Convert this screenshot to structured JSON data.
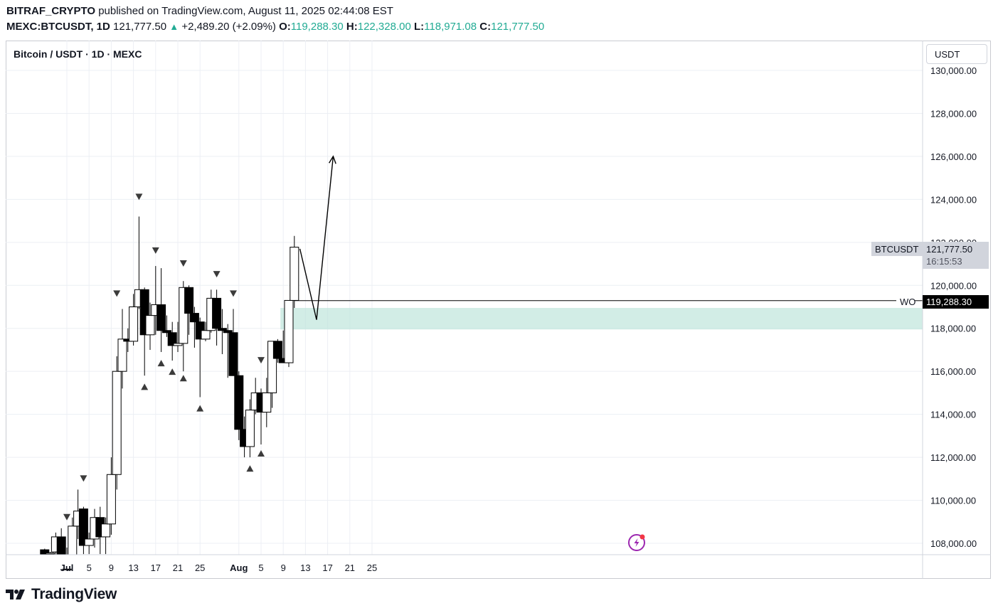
{
  "header": {
    "author": "BITRAF_CRYPTO",
    "published_text": "published on TradingView.com, August 11, 2025 02:44:08 EST",
    "symbol_line": "MEXC:BTCUSDT, 1D",
    "last_price": "121,777.50",
    "change": "+2,489.20 (+2.09%)",
    "ohlc": {
      "o_label": "O:",
      "o": "119,288.30",
      "h_label": "H:",
      "h": "122,328.00",
      "l_label": "L:",
      "l": "118,971.08",
      "c_label": "C:",
      "c": "121,777.50"
    }
  },
  "chart": {
    "title": "Bitcoin / USDT · 1D · MEXC",
    "currency": "USDT",
    "symbol_tag": "BTCUSDT",
    "price_tag": "121,777.50",
    "countdown": "16:15:53",
    "line_label": "WO",
    "line_price": "119,288.30"
  },
  "colors": {
    "candle_up_fill": "#ffffff",
    "candle_down_fill": "#000000",
    "zone": "#bfe6dc",
    "up_text": "#22ab94",
    "markers": "#3b3b3b",
    "grid": "#eceff4"
  },
  "footer": {
    "brand": "TradingView"
  },
  "chart_data": {
    "type": "candlestick",
    "y_ticks": [
      "130,000.00",
      "128,000.00",
      "126,000.00",
      "124,000.00",
      "122,000.00",
      "120,000.00",
      "118,000.00",
      "116,000.00",
      "114,000.00",
      "112,000.00",
      "110,000.00",
      "108,000.00"
    ],
    "x_ticks": [
      {
        "day": 1,
        "label": "Jul",
        "bold": true
      },
      {
        "day": 5,
        "label": "5"
      },
      {
        "day": 9,
        "label": "9"
      },
      {
        "day": 13,
        "label": "13"
      },
      {
        "day": 17,
        "label": "17"
      },
      {
        "day": 21,
        "label": "21"
      },
      {
        "day": 25,
        "label": "25"
      },
      {
        "day": 32,
        "label": "Aug",
        "bold": true
      },
      {
        "day": 36,
        "label": "5"
      },
      {
        "day": 40,
        "label": "9"
      },
      {
        "day": 44,
        "label": "13"
      },
      {
        "day": 48,
        "label": "17"
      },
      {
        "day": 52,
        "label": "21"
      },
      {
        "day": 56,
        "label": "25"
      }
    ],
    "ylim": [
      107500,
      130300
    ],
    "candles": [
      {
        "d": -3,
        "o": 107700,
        "h": 107750,
        "l": 107300,
        "c": 107450
      },
      {
        "d": -2,
        "o": 107500,
        "h": 107600,
        "l": 107200,
        "c": 107550
      },
      {
        "d": -1,
        "o": 107600,
        "h": 108500,
        "l": 107400,
        "c": 108300
      },
      {
        "d": 0,
        "o": 108300,
        "h": 108700,
        "l": 106800,
        "c": 107000
      },
      {
        "d": 1,
        "o": 106800,
        "h": 107800,
        "l": 105300,
        "c": 105600
      },
      {
        "d": 2,
        "o": 105600,
        "h": 109200,
        "l": 105100,
        "c": 108800
      },
      {
        "d": 3,
        "o": 108800,
        "h": 110500,
        "l": 108200,
        "c": 109500
      },
      {
        "d": 4,
        "o": 109600,
        "h": 109700,
        "l": 107500,
        "c": 107900
      },
      {
        "d": 5,
        "o": 107900,
        "h": 108500,
        "l": 107500,
        "c": 108200
      },
      {
        "d": 6,
        "o": 108200,
        "h": 109600,
        "l": 107800,
        "c": 109200
      },
      {
        "d": 7,
        "o": 109200,
        "h": 109700,
        "l": 107500,
        "c": 108300
      },
      {
        "d": 8,
        "o": 108300,
        "h": 109200,
        "l": 107500,
        "c": 108900
      },
      {
        "d": 9,
        "o": 108900,
        "h": 112000,
        "l": 108400,
        "c": 111200
      },
      {
        "d": 10,
        "o": 111200,
        "h": 116700,
        "l": 110500,
        "c": 116000
      },
      {
        "d": 11,
        "o": 116000,
        "h": 118900,
        "l": 115200,
        "c": 117500
      },
      {
        "d": 12,
        "o": 117500,
        "h": 118000,
        "l": 116900,
        "c": 117400
      },
      {
        "d": 13,
        "o": 117400,
        "h": 119600,
        "l": 117200,
        "c": 119000
      },
      {
        "d": 14,
        "o": 119000,
        "h": 123200,
        "l": 118900,
        "c": 119800
      },
      {
        "d": 15,
        "o": 119800,
        "h": 119900,
        "l": 115800,
        "c": 117700
      },
      {
        "d": 16,
        "o": 117700,
        "h": 119200,
        "l": 117000,
        "c": 118600
      },
      {
        "d": 17,
        "o": 118600,
        "h": 120900,
        "l": 117700,
        "c": 119100
      },
      {
        "d": 18,
        "o": 119100,
        "h": 120800,
        "l": 116900,
        "c": 117900
      },
      {
        "d": 19,
        "o": 117900,
        "h": 118600,
        "l": 117600,
        "c": 117800
      },
      {
        "d": 20,
        "o": 117800,
        "h": 118300,
        "l": 116500,
        "c": 117200
      },
      {
        "d": 21,
        "o": 117200,
        "h": 118300,
        "l": 116900,
        "c": 117300
      },
      {
        "d": 22,
        "o": 117300,
        "h": 120200,
        "l": 116000,
        "c": 119900
      },
      {
        "d": 23,
        "o": 119900,
        "h": 120000,
        "l": 117700,
        "c": 118700
      },
      {
        "d": 24,
        "o": 118700,
        "h": 119000,
        "l": 117100,
        "c": 118300
      },
      {
        "d": 25,
        "o": 118300,
        "h": 118500,
        "l": 114800,
        "c": 117500
      },
      {
        "d": 26,
        "o": 117500,
        "h": 118300,
        "l": 117400,
        "c": 117900
      },
      {
        "d": 27,
        "o": 117900,
        "h": 119800,
        "l": 117800,
        "c": 119400
      },
      {
        "d": 28,
        "o": 119400,
        "h": 119800,
        "l": 117200,
        "c": 118000
      },
      {
        "d": 29,
        "o": 118000,
        "h": 118900,
        "l": 116800,
        "c": 117900
      },
      {
        "d": 30,
        "o": 117900,
        "h": 118200,
        "l": 115700,
        "c": 117800
      },
      {
        "d": 31,
        "o": 117800,
        "h": 118900,
        "l": 115800,
        "c": 115800
      },
      {
        "d": 32,
        "o": 115800,
        "h": 116000,
        "l": 112800,
        "c": 113300
      },
      {
        "d": 33,
        "o": 113300,
        "h": 113900,
        "l": 112000,
        "c": 112500
      },
      {
        "d": 34,
        "o": 112500,
        "h": 114700,
        "l": 112000,
        "c": 114200
      },
      {
        "d": 35,
        "o": 114200,
        "h": 115700,
        "l": 114000,
        "c": 115000
      },
      {
        "d": 36,
        "o": 115000,
        "h": 115200,
        "l": 112600,
        "c": 114100
      },
      {
        "d": 37,
        "o": 114100,
        "h": 115700,
        "l": 113400,
        "c": 115000
      },
      {
        "d": 38,
        "o": 115000,
        "h": 117400,
        "l": 114300,
        "c": 117400
      },
      {
        "d": 39,
        "o": 117400,
        "h": 117500,
        "l": 116400,
        "c": 116600
      },
      {
        "d": 40,
        "o": 116600,
        "h": 117900,
        "l": 116400,
        "c": 116400
      },
      {
        "d": 41,
        "o": 116400,
        "h": 119300,
        "l": 116200,
        "c": 119300
      },
      {
        "d": 42,
        "o": 119300,
        "h": 122300,
        "l": 118950,
        "c": 121777
      }
    ],
    "markers_down": [
      {
        "d": 1,
        "price": 109200
      },
      {
        "d": 4,
        "price": 111000
      },
      {
        "d": 10,
        "price": 119600
      },
      {
        "d": 14,
        "price": 124100
      },
      {
        "d": 17,
        "price": 121600
      },
      {
        "d": 22,
        "price": 121000
      },
      {
        "d": 28,
        "price": 120500
      },
      {
        "d": 31,
        "price": 119600
      },
      {
        "d": 36,
        "price": 116500
      }
    ],
    "markers_up": [
      {
        "d": 15,
        "price": 115300
      },
      {
        "d": 18,
        "price": 116400
      },
      {
        "d": 20,
        "price": 116000
      },
      {
        "d": 22,
        "price": 115700
      },
      {
        "d": 25,
        "price": 114300
      },
      {
        "d": 34,
        "price": 111500
      },
      {
        "d": 36,
        "price": 112200
      }
    ],
    "zone": {
      "from_day": 40,
      "price_top": 118950,
      "price_bottom": 117950
    },
    "horizontal_line": {
      "from_day": 42,
      "price": 119288.3
    },
    "projection_path": [
      {
        "d": 43,
        "price": 121700
      },
      {
        "d": 46,
        "price": 118400
      },
      {
        "d": 49,
        "price": 126000
      }
    ]
  }
}
